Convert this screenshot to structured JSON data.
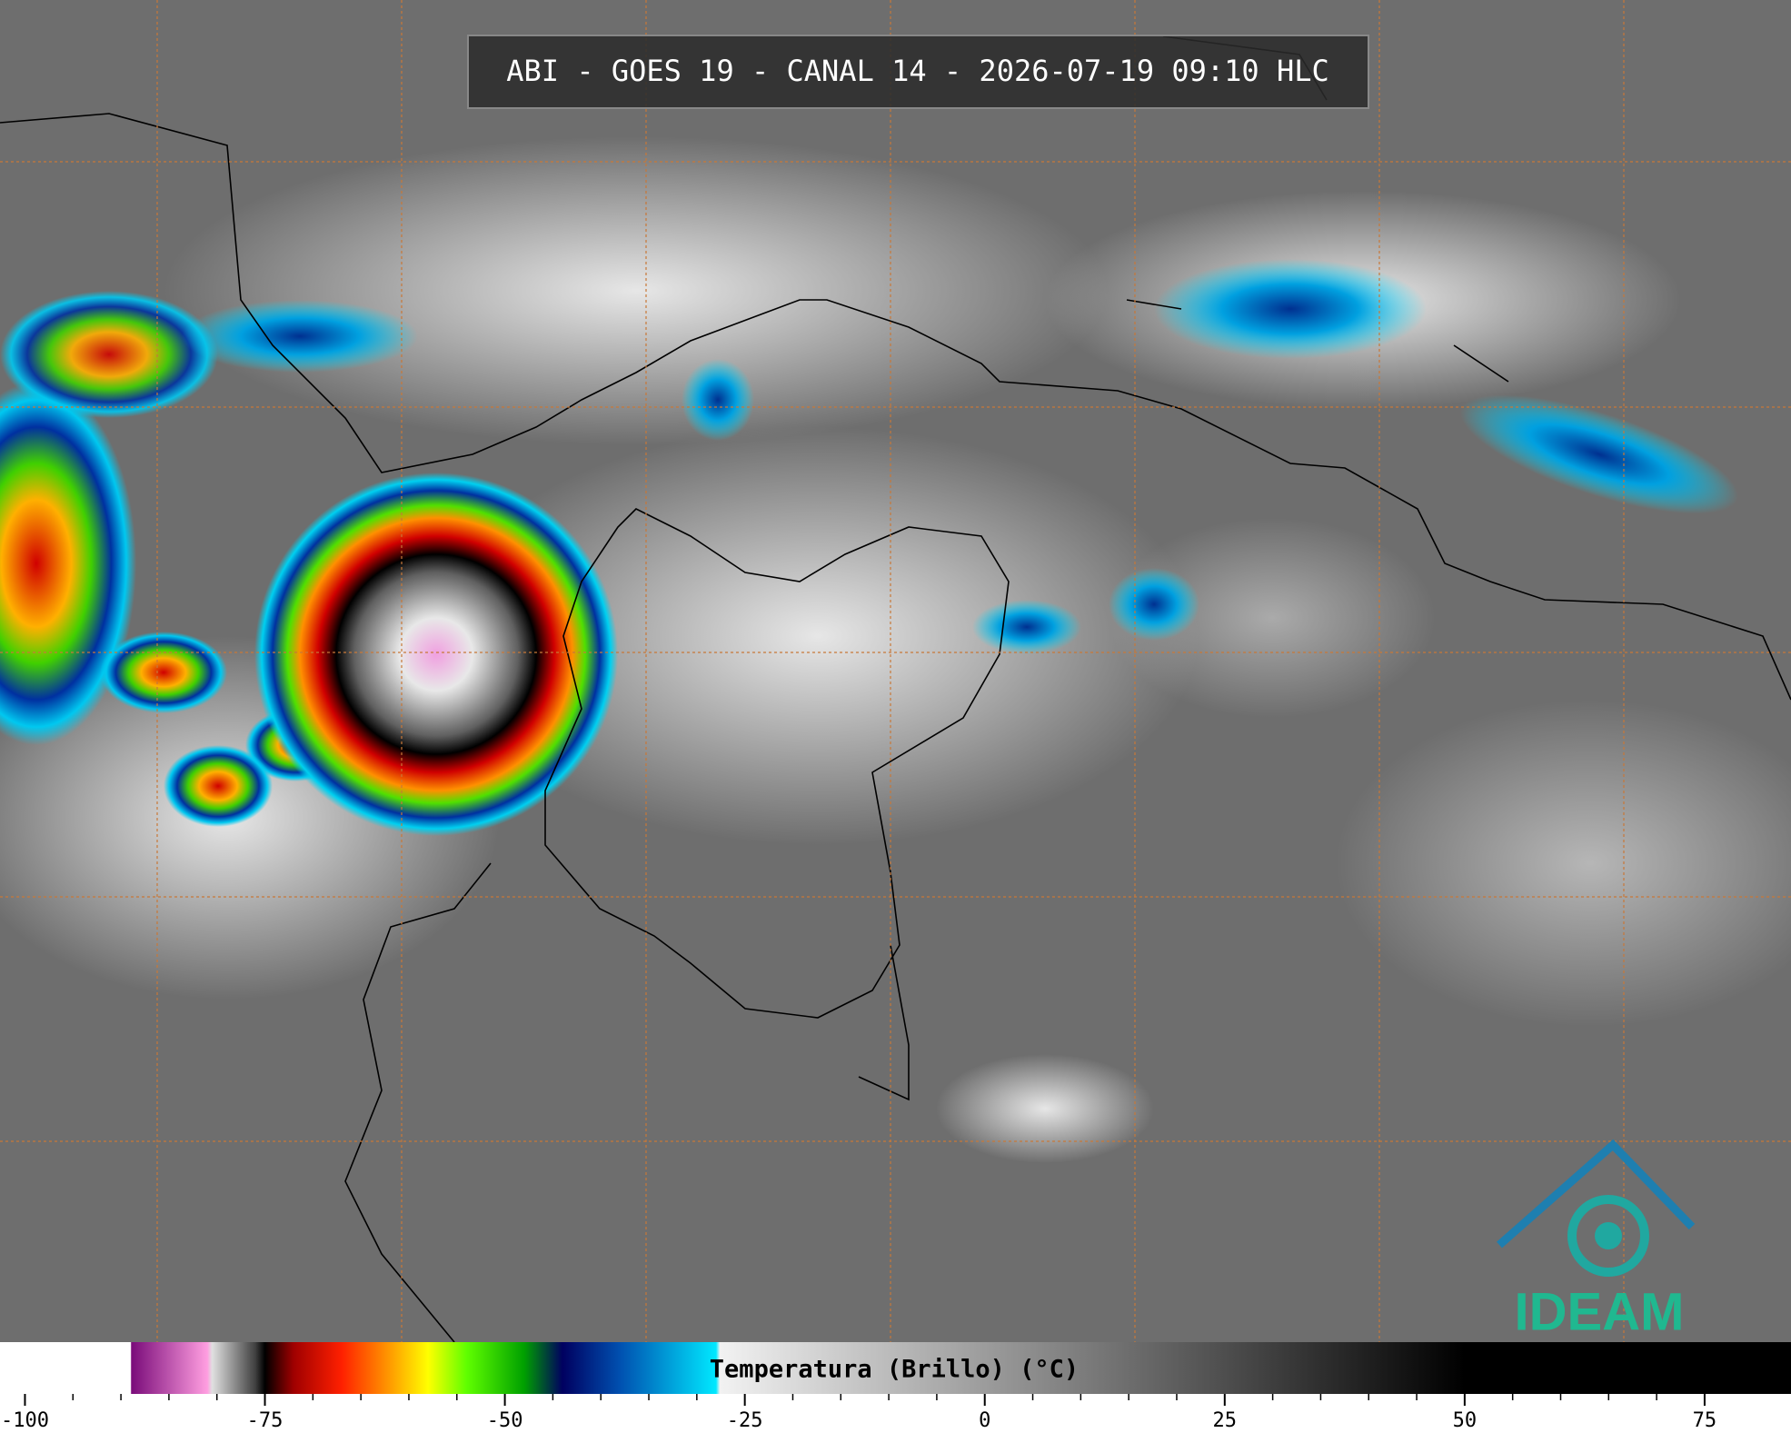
{
  "header": {
    "title": "ABI - GOES 19 - CANAL 14 - 2026-07-19 09:10 HLC"
  },
  "logo": {
    "text": "IDEAM"
  },
  "colorbar": {
    "label": "Temperatura (Brillo) (°C)",
    "lim": [
      -102.6,
      84
    ],
    "ticks": [
      -100,
      -75,
      -50,
      -25,
      0,
      25,
      50,
      75
    ],
    "stops": [
      {
        "value": -102.6,
        "color": "#ffffff"
      },
      {
        "value": -89,
        "color": "#ffffff"
      },
      {
        "value": -88.9,
        "color": "#7a0c7a"
      },
      {
        "value": -81,
        "color": "#ff9ee0"
      },
      {
        "value": -80.5,
        "color": "#e0e0e0"
      },
      {
        "value": -76,
        "color": "#404040"
      },
      {
        "value": -75,
        "color": "#000000"
      },
      {
        "value": -72,
        "color": "#a00000"
      },
      {
        "value": -67,
        "color": "#ff2000"
      },
      {
        "value": -62,
        "color": "#ff9a00"
      },
      {
        "value": -58,
        "color": "#ffff00"
      },
      {
        "value": -54,
        "color": "#60ff00"
      },
      {
        "value": -48,
        "color": "#00a000"
      },
      {
        "value": -44,
        "color": "#000060"
      },
      {
        "value": -38,
        "color": "#0050b0"
      },
      {
        "value": -28,
        "color": "#00e8ff"
      },
      {
        "value": -27.6,
        "color": "#f2f2f2"
      },
      {
        "value": 50,
        "color": "#000000"
      },
      {
        "value": 84,
        "color": "#000000"
      }
    ]
  }
}
